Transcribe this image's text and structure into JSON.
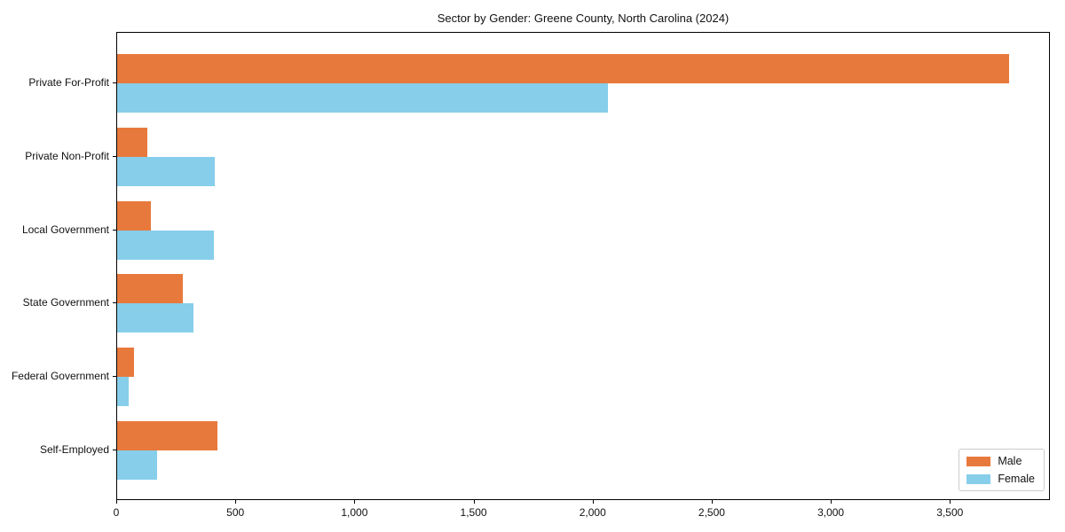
{
  "figure": {
    "background_color": "#ffffff",
    "axis_color": "#000000"
  },
  "legend": {
    "position": "lower-right",
    "items": [
      {
        "label": "Male",
        "color": "#e8793c"
      },
      {
        "label": "Female",
        "color": "#87ceeb"
      }
    ]
  },
  "chart_data": {
    "type": "bar",
    "orientation": "horizontal",
    "title": "Sector by Gender: Greene County, North Carolina (2024)",
    "categories": [
      "Private For-Profit",
      "Private Non-Profit",
      "Local Government",
      "State Government",
      "Federal Government",
      "Self-Employed"
    ],
    "series": [
      {
        "name": "Male",
        "color": "#e8793c",
        "values": [
          3745,
          125,
          140,
          277,
          72,
          420
        ]
      },
      {
        "name": "Female",
        "color": "#87ceeb",
        "values": [
          2062,
          410,
          405,
          322,
          47,
          168
        ]
      }
    ],
    "xlabel": "",
    "ylabel": "",
    "xlim": [
      0,
      3920
    ],
    "x_ticks": [
      0,
      500,
      1000,
      1500,
      2000,
      2500,
      3000,
      3500
    ],
    "x_tick_labels": [
      "0",
      "500",
      "1,000",
      "1,500",
      "2,000",
      "2,500",
      "3,000",
      "3,500"
    ],
    "grid": false,
    "legend_position": "lower right"
  }
}
